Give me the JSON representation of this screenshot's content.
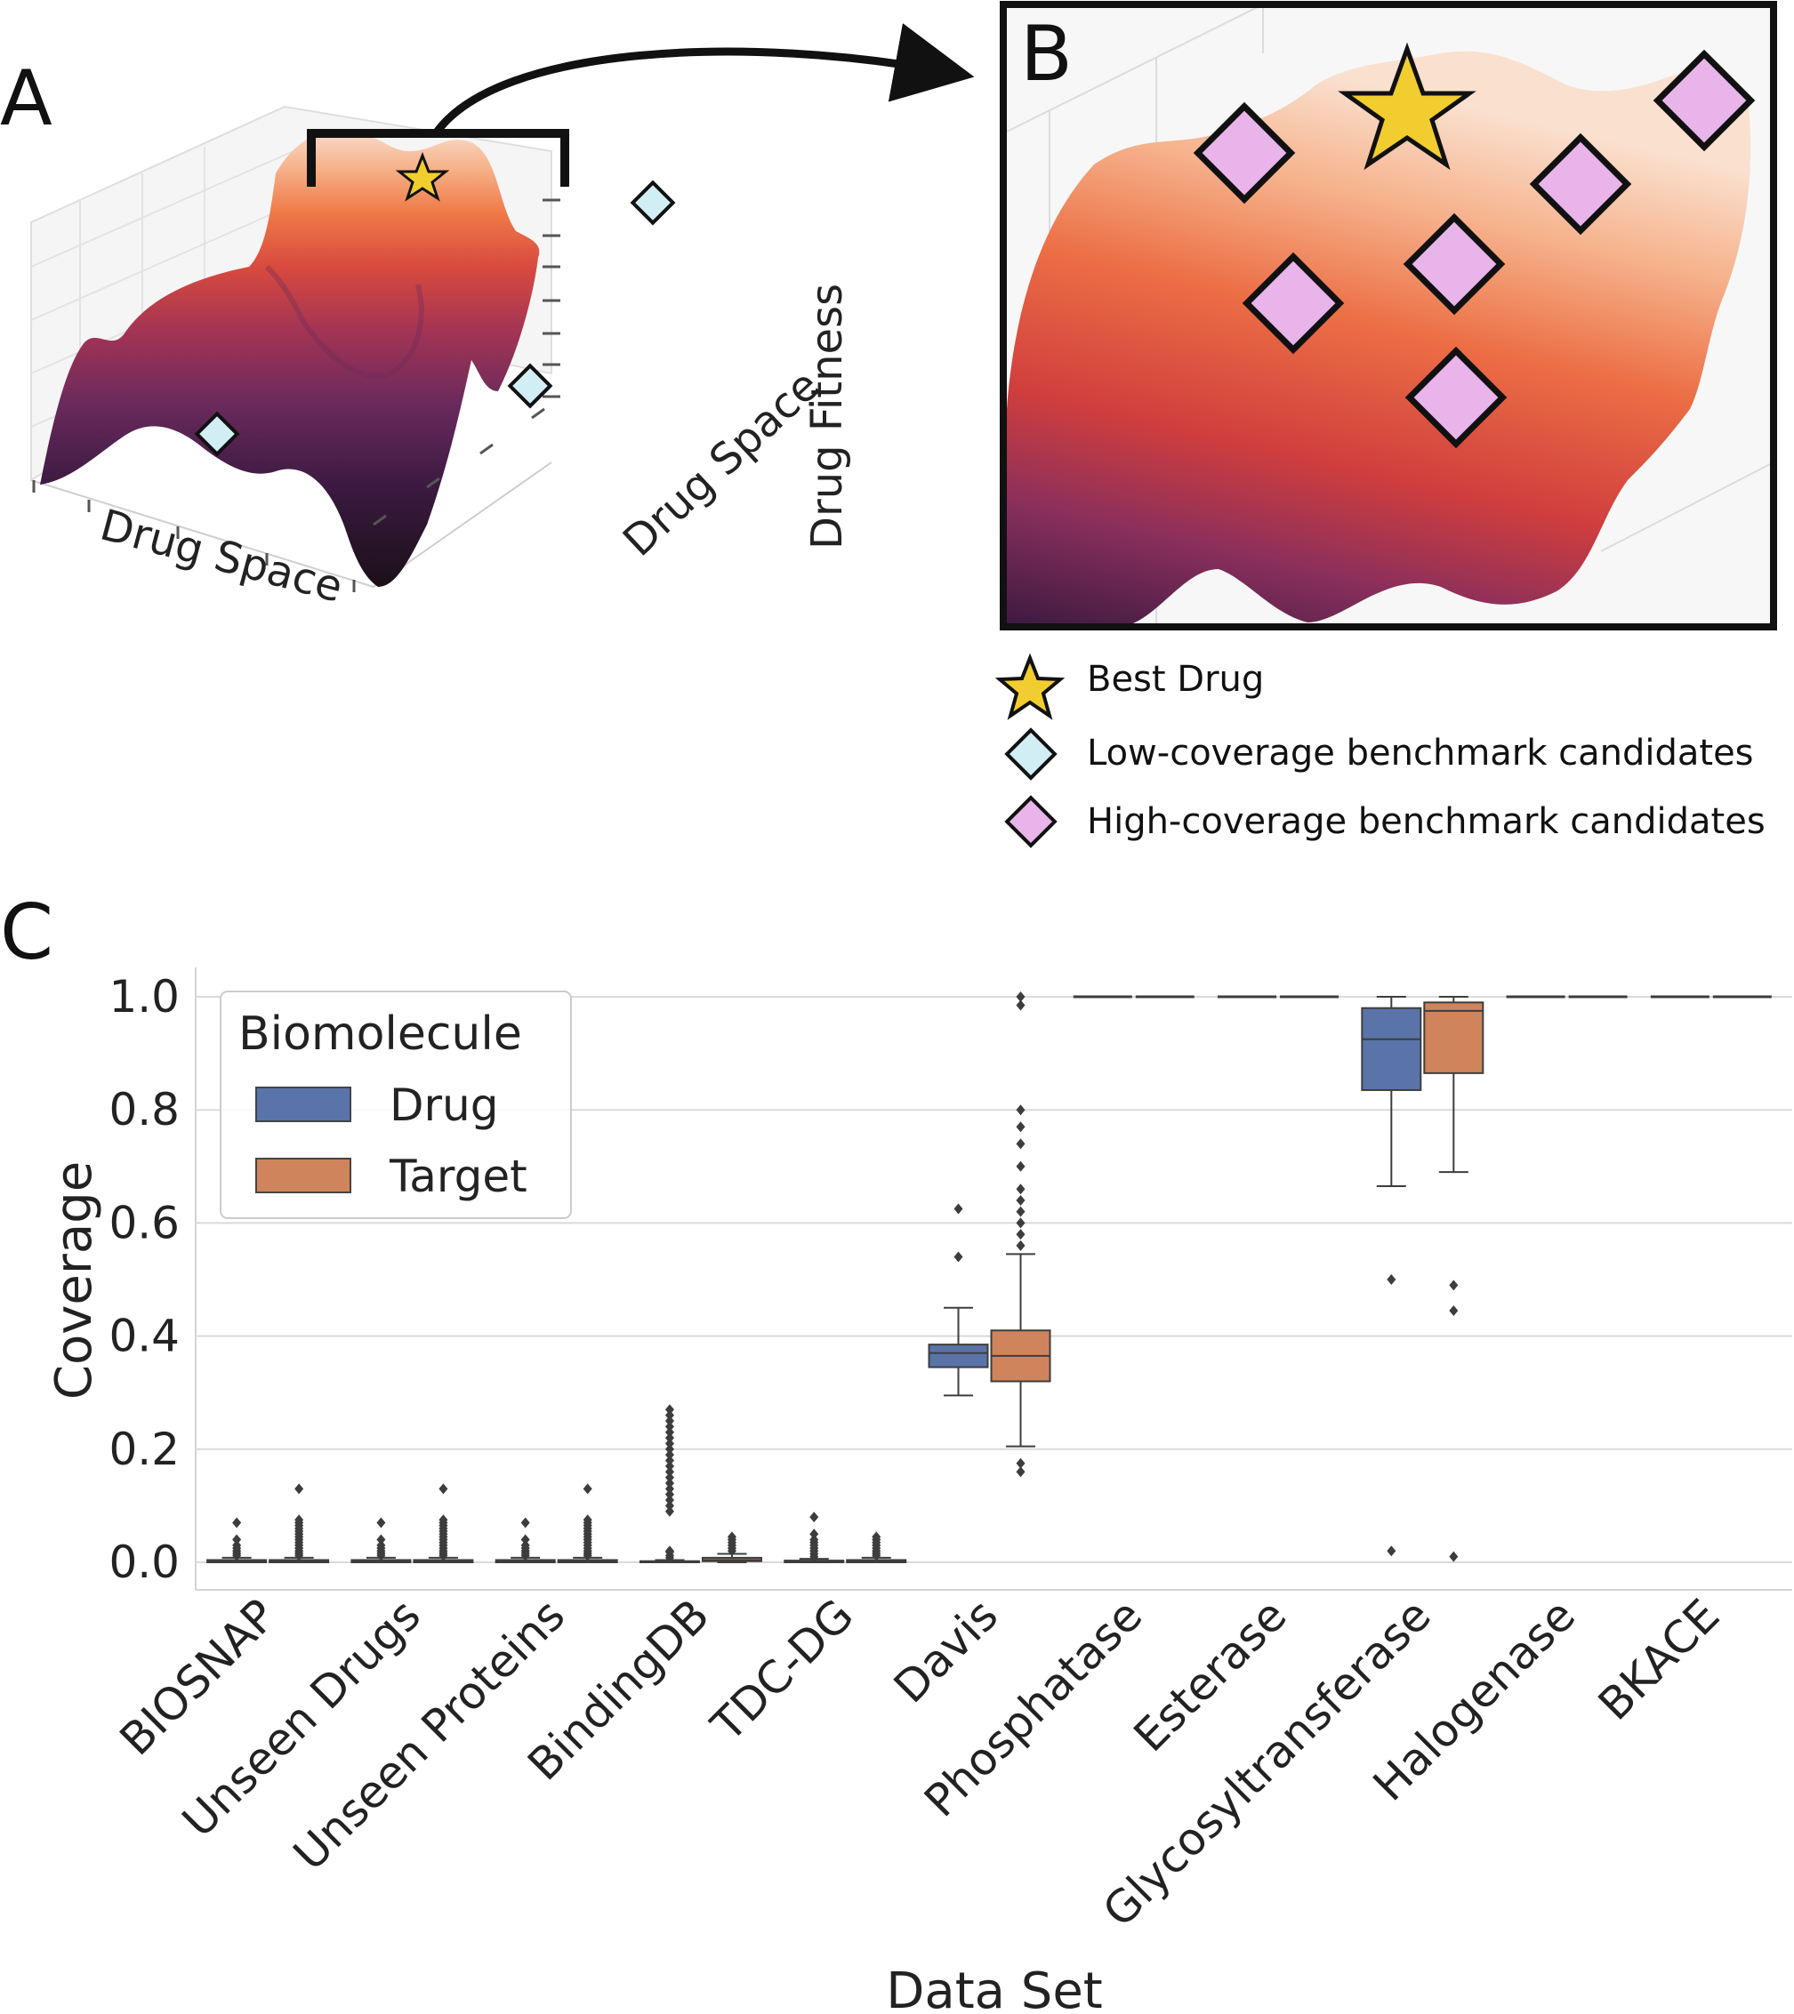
{
  "panels": {
    "a": "A",
    "b": "B",
    "c": "C"
  },
  "landscape": {
    "axis_x": "Drug Space",
    "axis_y": "Drug Space",
    "axis_z": "Drug Fitness",
    "colors": [
      "#1a1018",
      "#3b1a40",
      "#6a2a5c",
      "#a33454",
      "#d84a3e",
      "#ef7a48",
      "#f6b48c",
      "#f9dccb"
    ]
  },
  "legend_top": {
    "items": [
      {
        "label": "Best Drug",
        "marker": "star-icon",
        "color": "#f2cd2f"
      },
      {
        "label": "Low-coverage benchmark candidates",
        "marker": "diamond-icon",
        "color": "#d2eef5"
      },
      {
        "label": "High-coverage benchmark candidates",
        "marker": "diamond-icon",
        "color": "#e8b4ea"
      }
    ]
  },
  "chart_data": {
    "type": "box",
    "xlabel": "Data Set",
    "ylabel": "Coverage",
    "ylim": [
      -0.04,
      1.05
    ],
    "yticks": [
      "0.0",
      "0.2",
      "0.4",
      "0.6",
      "0.8",
      "1.0"
    ],
    "grid": true,
    "legend": {
      "title": "Biomolecule",
      "placement": "upper-left"
    },
    "categories": [
      "BIOSNAP",
      "Unseen Drugs",
      "Unseen Proteins",
      "BindingDB",
      "TDC-DG",
      "Davis",
      "Phosphatase",
      "Esterase",
      "Glycosyltransferase",
      "Halogenase",
      "BKACE"
    ],
    "series": [
      {
        "name": "Drug",
        "color": "#5a74aa",
        "boxes": [
          {
            "q1": 0.0,
            "median": 0.002,
            "q3": 0.004,
            "whislo": 0.0,
            "whishi": 0.008,
            "fliers": [
              0.012,
              0.016,
              0.02,
              0.025,
              0.03,
              0.04,
              0.07
            ]
          },
          {
            "q1": 0.0,
            "median": 0.002,
            "q3": 0.004,
            "whislo": 0.0,
            "whishi": 0.008,
            "fliers": [
              0.012,
              0.016,
              0.02,
              0.025,
              0.03,
              0.04,
              0.07
            ]
          },
          {
            "q1": 0.0,
            "median": 0.002,
            "q3": 0.004,
            "whislo": 0.0,
            "whishi": 0.008,
            "fliers": [
              0.012,
              0.016,
              0.02,
              0.025,
              0.03,
              0.04,
              0.07
            ]
          },
          {
            "q1": 0.0,
            "median": 0.001,
            "q3": 0.002,
            "whislo": 0.0,
            "whishi": 0.004,
            "fliers": [
              0.008,
              0.012,
              0.018,
              0.02,
              0.09,
              0.1,
              0.11,
              0.12,
              0.13,
              0.14,
              0.15,
              0.16,
              0.17,
              0.18,
              0.19,
              0.2,
              0.21,
              0.22,
              0.23,
              0.24,
              0.25,
              0.26,
              0.27
            ]
          },
          {
            "q1": 0.0,
            "median": 0.002,
            "q3": 0.003,
            "whislo": 0.0,
            "whishi": 0.006,
            "fliers": [
              0.01,
              0.015,
              0.02,
              0.025,
              0.03,
              0.035,
              0.04,
              0.05,
              0.08
            ]
          },
          {
            "q1": 0.345,
            "median": 0.37,
            "q3": 0.385,
            "whislo": 0.295,
            "whishi": 0.45,
            "fliers": [
              0.54,
              0.625
            ]
          },
          {
            "q1": 1.0,
            "median": 1.0,
            "q3": 1.0,
            "whislo": 1.0,
            "whishi": 1.0,
            "fliers": []
          },
          {
            "q1": 1.0,
            "median": 1.0,
            "q3": 1.0,
            "whislo": 1.0,
            "whishi": 1.0,
            "fliers": []
          },
          {
            "q1": 0.835,
            "median": 0.925,
            "q3": 0.98,
            "whislo": 0.665,
            "whishi": 1.0,
            "fliers": [
              0.5,
              0.02
            ]
          },
          {
            "q1": 1.0,
            "median": 1.0,
            "q3": 1.0,
            "whislo": 1.0,
            "whishi": 1.0,
            "fliers": []
          },
          {
            "q1": 1.0,
            "median": 1.0,
            "q3": 1.0,
            "whislo": 1.0,
            "whishi": 1.0,
            "fliers": []
          }
        ]
      },
      {
        "name": "Target",
        "color": "#d0845c",
        "boxes": [
          {
            "q1": 0.0,
            "median": 0.002,
            "q3": 0.004,
            "whislo": 0.0,
            "whishi": 0.008,
            "fliers": [
              0.012,
              0.016,
              0.02,
              0.025,
              0.03,
              0.035,
              0.04,
              0.045,
              0.05,
              0.055,
              0.06,
              0.065,
              0.07,
              0.075,
              0.13
            ]
          },
          {
            "q1": 0.0,
            "median": 0.002,
            "q3": 0.004,
            "whislo": 0.0,
            "whishi": 0.008,
            "fliers": [
              0.012,
              0.016,
              0.02,
              0.025,
              0.03,
              0.035,
              0.04,
              0.045,
              0.05,
              0.055,
              0.06,
              0.065,
              0.07,
              0.075,
              0.13
            ]
          },
          {
            "q1": 0.0,
            "median": 0.002,
            "q3": 0.004,
            "whislo": 0.0,
            "whishi": 0.008,
            "fliers": [
              0.012,
              0.016,
              0.02,
              0.025,
              0.03,
              0.035,
              0.04,
              0.045,
              0.05,
              0.055,
              0.06,
              0.065,
              0.07,
              0.075,
              0.13
            ]
          },
          {
            "q1": 0.002,
            "median": 0.004,
            "q3": 0.008,
            "whislo": 0.0,
            "whishi": 0.015,
            "fliers": [
              0.02,
              0.025,
              0.03,
              0.035,
              0.04,
              0.045
            ]
          },
          {
            "q1": 0.0,
            "median": 0.002,
            "q3": 0.004,
            "whislo": 0.0,
            "whishi": 0.008,
            "fliers": [
              0.012,
              0.016,
              0.02,
              0.025,
              0.03,
              0.035,
              0.04,
              0.045
            ]
          },
          {
            "q1": 0.32,
            "median": 0.365,
            "q3": 0.41,
            "whislo": 0.205,
            "whishi": 0.545,
            "fliers": [
              0.16,
              0.175,
              0.56,
              0.58,
              0.6,
              0.62,
              0.64,
              0.66,
              0.7,
              0.74,
              0.77,
              0.8,
              0.985,
              1.0
            ]
          },
          {
            "q1": 1.0,
            "median": 1.0,
            "q3": 1.0,
            "whislo": 1.0,
            "whishi": 1.0,
            "fliers": []
          },
          {
            "q1": 1.0,
            "median": 1.0,
            "q3": 1.0,
            "whislo": 1.0,
            "whishi": 1.0,
            "fliers": []
          },
          {
            "q1": 0.865,
            "median": 0.975,
            "q3": 0.99,
            "whislo": 0.69,
            "whishi": 1.0,
            "fliers": [
              0.49,
              0.445,
              0.01
            ]
          },
          {
            "q1": 1.0,
            "median": 1.0,
            "q3": 1.0,
            "whislo": 1.0,
            "whishi": 1.0,
            "fliers": []
          },
          {
            "q1": 1.0,
            "median": 1.0,
            "q3": 1.0,
            "whislo": 1.0,
            "whishi": 1.0,
            "fliers": []
          }
        ]
      }
    ]
  }
}
